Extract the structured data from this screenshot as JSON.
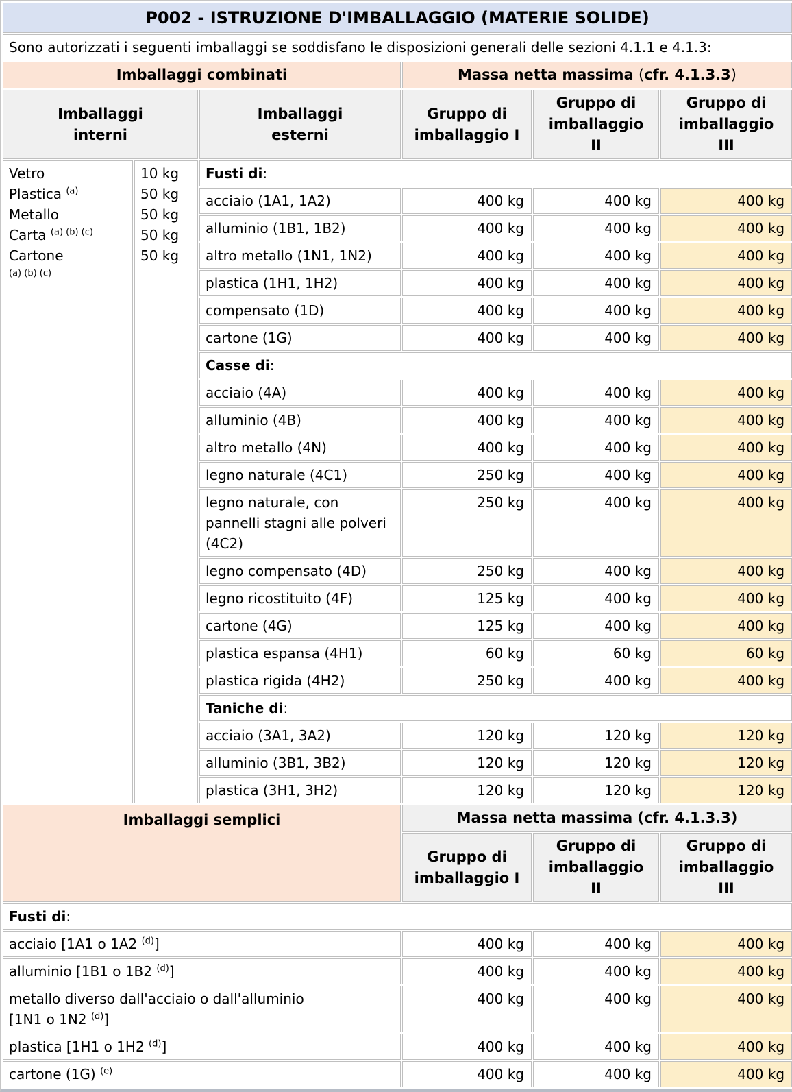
{
  "title": "P002 - ISTRUZIONE D'IMBALLAGGIO (MATERIE SOLIDE)",
  "intro": "Sono autorizzati i seguenti imballaggi se soddisfano le disposizioni generali delle sezioni 4.1.1 e 4.1.3:",
  "colors": {
    "title_bg": "#d9e1f2",
    "section_band_bg": "#fce4d6",
    "column_header_bg": "#f0f0f0",
    "group3_highlight_bg": "#fdeec9",
    "border": "#bfbfbf"
  },
  "combined": {
    "header": "Imballaggi combinati",
    "massa_header_parts": [
      {
        "text": "Massa netta massima ",
        "bold": true
      },
      {
        "text": "("
      },
      {
        "text": "cfr. 4.1.3.3",
        "bold": true
      },
      {
        "text": ")"
      }
    ],
    "col_headers": {
      "interni": [
        "Imballaggi",
        "interni"
      ],
      "esterni": [
        "Imballaggi",
        "esterni"
      ],
      "gruppo1": [
        "Gruppo di",
        "imballaggio I"
      ],
      "gruppo2": [
        "Gruppo di",
        "imballaggio",
        "II"
      ],
      "gruppo3": [
        "Gruppo di",
        "imballaggio",
        "III"
      ]
    },
    "inner_packagings": {
      "lines": [
        [
          {
            "text": "Vetro"
          }
        ],
        [
          {
            "text": "Plastica "
          },
          {
            "text": "(a)",
            "sup": true
          }
        ],
        [
          {
            "text": "Metallo"
          }
        ],
        [
          {
            "text": "Carta "
          },
          {
            "text": "(a) (b) (c)",
            "sup": true
          }
        ],
        [
          {
            "text": "Cartone"
          }
        ],
        [
          {
            "text": "(a) (b) (c)",
            "sup": true
          }
        ]
      ],
      "masses": [
        "10 kg",
        "50 kg",
        "50 kg",
        "50 kg",
        "50 kg"
      ]
    },
    "sections": [
      {
        "header_parts": [
          {
            "text": "Fusti di",
            "bold": true
          },
          {
            "text": ":"
          }
        ],
        "rows": [
          {
            "label": "acciaio (1A1, 1A2)",
            "values": [
              "400 kg",
              "400 kg",
              "400 kg"
            ]
          },
          {
            "label": "alluminio (1B1, 1B2)",
            "values": [
              "400 kg",
              "400 kg",
              "400 kg"
            ]
          },
          {
            "label": "altro metallo (1N1, 1N2)",
            "values": [
              "400 kg",
              "400 kg",
              "400 kg"
            ]
          },
          {
            "label": "plastica (1H1, 1H2)",
            "values": [
              "400 kg",
              "400 kg",
              "400 kg"
            ]
          },
          {
            "label": "compensato (1D)",
            "values": [
              "400 kg",
              "400 kg",
              "400 kg"
            ]
          },
          {
            "label": "cartone (1G)",
            "values": [
              "400 kg",
              "400 kg",
              "400 kg"
            ]
          }
        ]
      },
      {
        "header_parts": [
          {
            "text": "Casse di",
            "bold": true
          },
          {
            "text": ":"
          }
        ],
        "rows": [
          {
            "label": "acciaio (4A)",
            "values": [
              "400 kg",
              "400 kg",
              "400 kg"
            ]
          },
          {
            "label": "alluminio (4B)",
            "values": [
              "400 kg",
              "400 kg",
              "400 kg"
            ]
          },
          {
            "label": "altro metallo (4N)",
            "values": [
              "400 kg",
              "400 kg",
              "400 kg"
            ]
          },
          {
            "label": "legno naturale (4C1)",
            "values": [
              "250 kg",
              "400 kg",
              "400 kg"
            ]
          },
          {
            "label": "legno naturale, con pannelli stagni alle polveri (4C2)",
            "values": [
              "250 kg",
              "400 kg",
              "400 kg"
            ]
          },
          {
            "label": "legno compensato (4D)",
            "values": [
              "250 kg",
              "400 kg",
              "400 kg"
            ]
          },
          {
            "label": "legno ricostituito (4F)",
            "values": [
              "125 kg",
              "400 kg",
              "400 kg"
            ]
          },
          {
            "label": "cartone (4G)",
            "values": [
              "125 kg",
              "400 kg",
              "400 kg"
            ]
          },
          {
            "label": "plastica espansa (4H1)",
            "values": [
              "60 kg",
              "60 kg",
              "60 kg"
            ]
          },
          {
            "label": "plastica rigida (4H2)",
            "values": [
              "250 kg",
              "400 kg",
              "400 kg"
            ]
          }
        ]
      },
      {
        "header_parts": [
          {
            "text": "Taniche di",
            "bold": true
          },
          {
            "text": ":"
          }
        ],
        "rows": [
          {
            "label": "acciaio (3A1, 3A2)",
            "values": [
              "120 kg",
              "120 kg",
              "120 kg"
            ]
          },
          {
            "label": "alluminio (3B1, 3B2)",
            "values": [
              "120 kg",
              "120 kg",
              "120 kg"
            ]
          },
          {
            "label": "plastica (3H1, 3H2)",
            "values": [
              "120 kg",
              "120 kg",
              "120 kg"
            ]
          }
        ]
      }
    ]
  },
  "single": {
    "header": "Imballaggi semplici",
    "massa_header_parts": [
      {
        "text": "Massa netta massima ",
        "bold": true
      },
      {
        "text": "("
      },
      {
        "text": "cfr. 4.1.3.3",
        "bold": true
      },
      {
        "text": ")"
      }
    ],
    "col_headers": {
      "gruppo1": [
        "Gruppo di",
        "imballaggio I"
      ],
      "gruppo2": [
        "Gruppo di",
        "imballaggio",
        "II"
      ],
      "gruppo3": [
        "Gruppo di",
        "imballaggio",
        "III"
      ]
    },
    "sections": [
      {
        "header_parts": [
          {
            "text": "Fusti di",
            "bold": true
          },
          {
            "text": ":"
          }
        ],
        "rows": [
          {
            "label": [
              {
                "text": "acciaio [1A1 o 1A2 "
              },
              {
                "text": "(d)",
                "sup": true
              },
              {
                "text": "]"
              }
            ],
            "values": [
              "400 kg",
              "400 kg",
              "400 kg"
            ]
          },
          {
            "label": [
              {
                "text": "alluminio [1B1 o 1B2 "
              },
              {
                "text": "(d)",
                "sup": true
              },
              {
                "text": "]"
              }
            ],
            "values": [
              "400 kg",
              "400 kg",
              "400 kg"
            ]
          },
          {
            "label": [
              {
                "text": "metallo diverso dall'acciaio o dall'alluminio"
              },
              {
                "br": true
              },
              {
                "text": "[1N1 o 1N2 "
              },
              {
                "text": "(d)",
                "sup": true
              },
              {
                "text": "]"
              }
            ],
            "values": [
              "400 kg",
              "400 kg",
              "400 kg"
            ]
          },
          {
            "label": [
              {
                "text": "plastica [1H1 o 1H2 "
              },
              {
                "text": "(d)",
                "sup": true
              },
              {
                "text": "]"
              }
            ],
            "values": [
              "400 kg",
              "400 kg",
              "400 kg"
            ]
          },
          {
            "label": [
              {
                "text": "cartone (1G) "
              },
              {
                "text": "(e)",
                "sup": true
              }
            ],
            "values": [
              "400 kg",
              "400 kg",
              "400 kg"
            ]
          }
        ]
      }
    ]
  }
}
